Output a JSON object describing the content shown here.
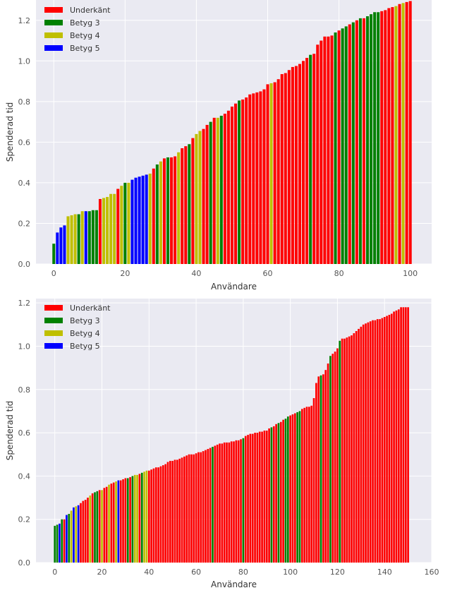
{
  "chart_data": [
    {
      "type": "bar",
      "title": "",
      "xlabel": "Användare",
      "ylabel": "Spenderad tid",
      "xlim": [
        -5,
        106
      ],
      "ylim": [
        0,
        1.3
      ],
      "xticks": [
        0,
        20,
        40,
        60,
        80,
        100
      ],
      "xtick_labels": [
        "0",
        "20",
        "40",
        "60",
        "80",
        "100"
      ],
      "yticks": [
        0,
        0.2,
        0.4,
        0.6,
        0.8,
        1.0,
        1.2
      ],
      "ytick_labels": [
        "0.0",
        "0.2",
        "0.4",
        "0.6",
        "0.8",
        "1.0",
        "1.2"
      ],
      "grid": true,
      "legend_position": "upper-left",
      "legend": [
        {
          "label": "Underkänt",
          "color": "#ff0000"
        },
        {
          "label": "Betyg 3",
          "color": "#008000"
        },
        {
          "label": "Betyg 4",
          "color": "#bfbf00"
        },
        {
          "label": "Betyg 5",
          "color": "#0000ff"
        }
      ],
      "values": [
        0.1,
        0.155,
        0.18,
        0.19,
        0.235,
        0.24,
        0.245,
        0.245,
        0.26,
        0.26,
        0.26,
        0.265,
        0.265,
        0.32,
        0.325,
        0.33,
        0.345,
        0.345,
        0.37,
        0.385,
        0.4,
        0.4,
        0.415,
        0.425,
        0.43,
        0.435,
        0.44,
        0.445,
        0.47,
        0.49,
        0.505,
        0.52,
        0.525,
        0.525,
        0.53,
        0.55,
        0.57,
        0.58,
        0.59,
        0.62,
        0.64,
        0.655,
        0.665,
        0.685,
        0.7,
        0.72,
        0.72,
        0.73,
        0.74,
        0.755,
        0.775,
        0.79,
        0.805,
        0.81,
        0.82,
        0.835,
        0.84,
        0.845,
        0.85,
        0.86,
        0.885,
        0.89,
        0.895,
        0.91,
        0.935,
        0.94,
        0.955,
        0.97,
        0.975,
        0.985,
        1.0,
        1.015,
        1.03,
        1.035,
        1.08,
        1.1,
        1.12,
        1.12,
        1.125,
        1.14,
        1.15,
        1.16,
        1.17,
        1.18,
        1.19,
        1.2,
        1.21,
        1.21,
        1.22,
        1.23,
        1.24,
        1.24,
        1.245,
        1.25,
        1.26,
        1.265,
        1.27,
        1.28,
        1.285,
        1.29,
        1.295
      ],
      "categories": [
        "3",
        "5",
        "5",
        "5",
        "4",
        "4",
        "4",
        "3",
        "4",
        "5",
        "3",
        "3",
        "3",
        "U",
        "4",
        "4",
        "4",
        "4",
        "U",
        "4",
        "3",
        "4",
        "5",
        "5",
        "5",
        "5",
        "5",
        "4",
        "U",
        "3",
        "4",
        "U",
        "3",
        "U",
        "U",
        "4",
        "U",
        "U",
        "3",
        "U",
        "4",
        "4",
        "U",
        "U",
        "3",
        "U",
        "4",
        "3",
        "U",
        "U",
        "U",
        "U",
        "3",
        "U",
        "U",
        "U",
        "U",
        "U",
        "U",
        "U",
        "U",
        "4",
        "U",
        "U",
        "U",
        "U",
        "U",
        "U",
        "U",
        "U",
        "U",
        "U",
        "3",
        "U",
        "U",
        "U",
        "U",
        "U",
        "U",
        "3",
        "U",
        "3",
        "3",
        "U",
        "3",
        "U",
        "3",
        "U",
        "3",
        "3",
        "3",
        "3",
        "U",
        "U",
        "U",
        "U",
        "4",
        "U",
        "4",
        "U",
        "U"
      ]
    },
    {
      "type": "bar",
      "title": "",
      "xlabel": "Användare",
      "ylabel": "Spenderad tid",
      "xlim": [
        -8,
        160
      ],
      "ylim": [
        0,
        1.22
      ],
      "xticks": [
        0,
        20,
        40,
        60,
        80,
        100,
        120,
        140,
        160
      ],
      "xtick_labels": [
        "0",
        "20",
        "40",
        "60",
        "80",
        "100",
        "120",
        "140",
        "160"
      ],
      "yticks": [
        0,
        0.2,
        0.4,
        0.6,
        0.8,
        1.0,
        1.2
      ],
      "ytick_labels": [
        "0.0",
        "0.2",
        "0.4",
        "0.6",
        "0.8",
        "1.0",
        "1.2"
      ],
      "grid": true,
      "legend_position": "upper-left",
      "legend": [
        {
          "label": "Underkänt",
          "color": "#ff0000"
        },
        {
          "label": "Betyg 3",
          "color": "#008000"
        },
        {
          "label": "Betyg 4",
          "color": "#bfbf00"
        },
        {
          "label": "Betyg 5",
          "color": "#0000ff"
        }
      ],
      "values": [
        0.17,
        0.175,
        0.18,
        0.2,
        0.2,
        0.22,
        0.225,
        0.24,
        0.255,
        0.26,
        0.265,
        0.275,
        0.285,
        0.29,
        0.3,
        0.31,
        0.32,
        0.325,
        0.33,
        0.335,
        0.335,
        0.345,
        0.35,
        0.36,
        0.365,
        0.37,
        0.375,
        0.38,
        0.38,
        0.385,
        0.39,
        0.39,
        0.395,
        0.4,
        0.405,
        0.405,
        0.41,
        0.415,
        0.42,
        0.425,
        0.425,
        0.43,
        0.435,
        0.44,
        0.44,
        0.445,
        0.45,
        0.455,
        0.465,
        0.47,
        0.47,
        0.475,
        0.475,
        0.48,
        0.485,
        0.49,
        0.495,
        0.5,
        0.5,
        0.5,
        0.505,
        0.51,
        0.51,
        0.515,
        0.52,
        0.525,
        0.53,
        0.535,
        0.54,
        0.545,
        0.55,
        0.55,
        0.555,
        0.555,
        0.555,
        0.56,
        0.56,
        0.565,
        0.565,
        0.57,
        0.575,
        0.585,
        0.59,
        0.595,
        0.595,
        0.6,
        0.6,
        0.605,
        0.605,
        0.61,
        0.61,
        0.62,
        0.625,
        0.63,
        0.64,
        0.645,
        0.65,
        0.66,
        0.665,
        0.675,
        0.68,
        0.685,
        0.69,
        0.695,
        0.7,
        0.71,
        0.715,
        0.72,
        0.72,
        0.725,
        0.76,
        0.83,
        0.86,
        0.865,
        0.87,
        0.89,
        0.92,
        0.955,
        0.965,
        0.975,
        0.99,
        1.025,
        1.035,
        1.035,
        1.04,
        1.045,
        1.05,
        1.06,
        1.07,
        1.08,
        1.09,
        1.1,
        1.105,
        1.11,
        1.115,
        1.12,
        1.12,
        1.125,
        1.125,
        1.13,
        1.135,
        1.14,
        1.145,
        1.15,
        1.16,
        1.165,
        1.17,
        1.18,
        1.18,
        1.18,
        1.18
      ],
      "categories": [
        "3",
        "3",
        "5",
        "3",
        "U",
        "5",
        "3",
        "4",
        "5",
        "4",
        "5",
        "U",
        "U",
        "U",
        "U",
        "4",
        "U",
        "3",
        "3",
        "U",
        "4",
        "U",
        "U",
        "4",
        "U",
        "U",
        "4",
        "5",
        "U",
        "U",
        "U",
        "3",
        "U",
        "3",
        "4",
        "4",
        "U",
        "3",
        "4",
        "4",
        "U",
        "U",
        "U",
        "U",
        "U",
        "U",
        "U",
        "U",
        "U",
        "U",
        "U",
        "U",
        "U",
        "U",
        "U",
        "U",
        "U",
        "U",
        "U",
        "U",
        "U",
        "U",
        "U",
        "U",
        "U",
        "U",
        "U",
        "3",
        "U",
        "U",
        "U",
        "U",
        "U",
        "U",
        "U",
        "U",
        "U",
        "U",
        "U",
        "U",
        "3",
        "U",
        "U",
        "U",
        "U",
        "U",
        "U",
        "U",
        "U",
        "U",
        "U",
        "U",
        "3",
        "U",
        "U",
        "3",
        "U",
        "U",
        "3",
        "3",
        "U",
        "U",
        "U",
        "3",
        "3",
        "U",
        "U",
        "U",
        "U",
        "U",
        "U",
        "U",
        "U",
        "3",
        "U",
        "U",
        "U",
        "3",
        "U",
        "U",
        "U",
        "3",
        "U",
        "U",
        "U",
        "U",
        "U",
        "U",
        "U",
        "U",
        "U",
        "U",
        "U",
        "U",
        "U",
        "U",
        "U",
        "U",
        "U",
        "U",
        "U",
        "U",
        "U",
        "U",
        "U",
        "U",
        "U",
        "U",
        "U",
        "U",
        "U"
      ]
    }
  ]
}
